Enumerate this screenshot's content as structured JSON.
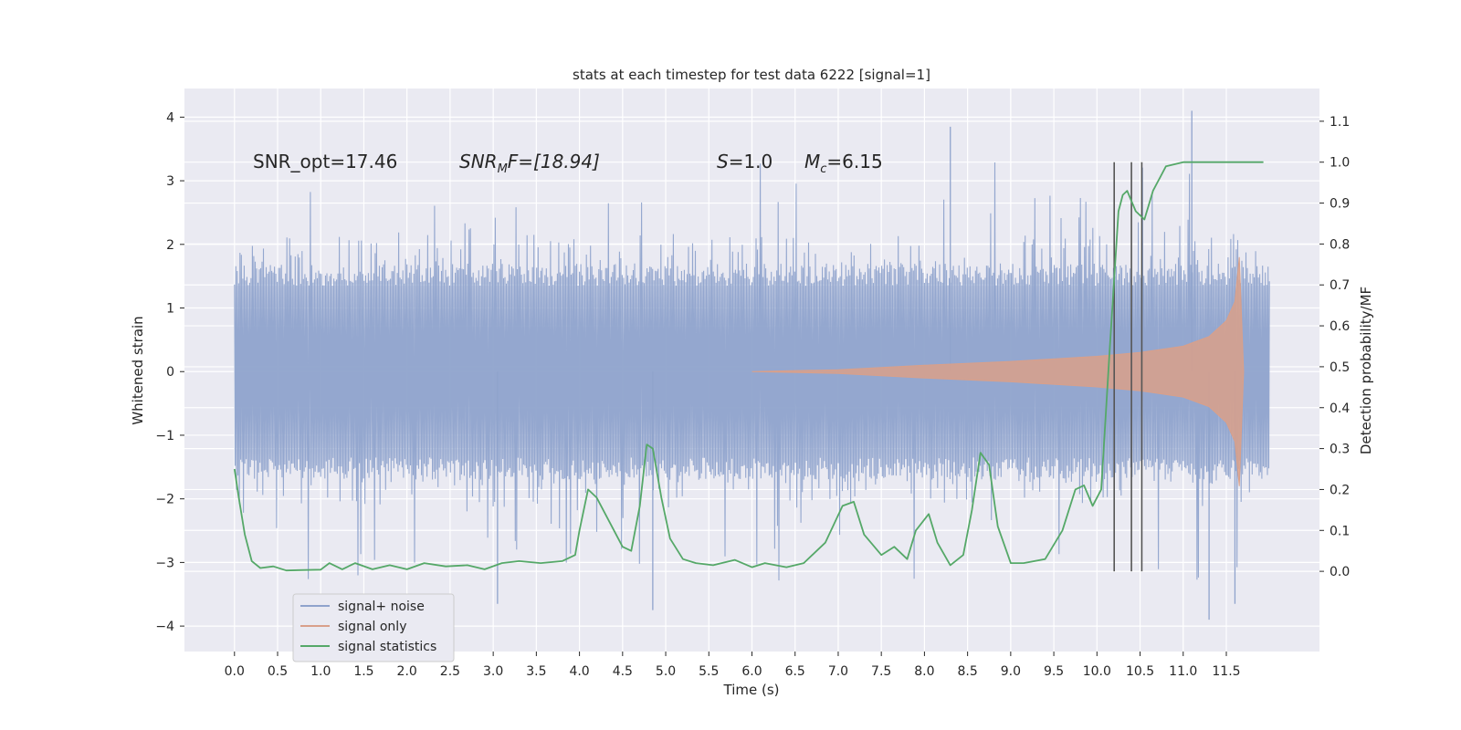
{
  "chart_data": {
    "type": "line",
    "title": "stats at each timestep for test data 6222 [signal=1]",
    "xlabel": "Time (s)",
    "ylabel_left": "Whitened strain",
    "ylabel_right": "Detection probability/MF",
    "xlim": [
      -0.58,
      12.58
    ],
    "ylim_left": [
      -4.4,
      4.45
    ],
    "ylim_right": [
      -0.196,
      1.18
    ],
    "x_ticks": [
      "0.0",
      "0.5",
      "1.0",
      "1.5",
      "2.0",
      "2.5",
      "3.0",
      "3.5",
      "4.0",
      "4.5",
      "5.0",
      "5.5",
      "6.0",
      "6.5",
      "7.0",
      "7.5",
      "8.0",
      "8.5",
      "9.0",
      "9.5",
      "10.0",
      "10.5",
      "11.0",
      "11.5"
    ],
    "y_ticks_left": [
      "4",
      "3",
      "2",
      "1",
      "0",
      "−1",
      "−2",
      "−3",
      "−4"
    ],
    "y_ticks_right": [
      "1.1",
      "1.0",
      "0.9",
      "0.8",
      "0.7",
      "0.6",
      "0.5",
      "0.4",
      "0.3",
      "0.2",
      "0.1",
      "0.0"
    ],
    "grid": true,
    "legend_position": "bottom-left",
    "annotations": {
      "snr_opt": "SNR_opt=17.46",
      "snr_mf_sym": "SNR",
      "snr_mf_sub": "M",
      "snr_mf_rest": "F=[18.94]",
      "s_sym": "S",
      "s_rest": "=1.0",
      "mc_sym": "M",
      "mc_sub": "c",
      "mc_rest": "=6.15"
    },
    "series": [
      {
        "name": "signal+ noise",
        "color": "#8fa3cc",
        "axis": "left",
        "x_range": [
          0.0,
          12.0
        ],
        "approx_envelope": {
          "typical_abs": 1.35,
          "spike_max": 4.1,
          "spike_min": -3.9
        },
        "notable_spikes": [
          {
            "x": 8.3,
            "y": 3.85
          },
          {
            "x": 11.1,
            "y": 4.1
          },
          {
            "x": 11.3,
            "y": -3.9
          },
          {
            "x": 4.85,
            "y": -3.75
          },
          {
            "x": 3.05,
            "y": -3.65
          },
          {
            "x": 11.6,
            "y": -3.65
          }
        ]
      },
      {
        "name": "signal only",
        "color": "#d9a08a",
        "axis": "left",
        "x": [
          6.0,
          7.0,
          8.0,
          9.0,
          10.0,
          10.5,
          11.0,
          11.3,
          11.5,
          11.6,
          11.65,
          11.7
        ],
        "amplitude": [
          0.0,
          0.03,
          0.1,
          0.16,
          0.24,
          0.3,
          0.4,
          0.55,
          0.8,
          1.1,
          1.8,
          0.0
        ]
      },
      {
        "name": "signal statistics",
        "color": "#55a868",
        "axis": "right",
        "x": [
          0.0,
          0.05,
          0.12,
          0.2,
          0.3,
          0.45,
          0.6,
          0.75,
          1.0,
          1.1,
          1.25,
          1.4,
          1.6,
          1.8,
          2.0,
          2.2,
          2.45,
          2.7,
          2.9,
          3.1,
          3.3,
          3.55,
          3.8,
          3.95,
          4.0,
          4.1,
          4.2,
          4.3,
          4.5,
          4.6,
          4.7,
          4.78,
          4.85,
          4.95,
          5.05,
          5.2,
          5.35,
          5.55,
          5.8,
          6.0,
          6.15,
          6.4,
          6.6,
          6.85,
          7.05,
          7.18,
          7.3,
          7.5,
          7.65,
          7.8,
          7.9,
          8.05,
          8.15,
          8.3,
          8.45,
          8.55,
          8.65,
          8.75,
          8.85,
          9.0,
          9.15,
          9.4,
          9.6,
          9.75,
          9.85,
          9.95,
          10.05,
          10.15,
          10.25,
          10.3,
          10.35,
          10.45,
          10.55,
          10.65,
          10.8,
          11.0,
          11.5,
          11.93
        ],
        "y": [
          0.25,
          0.18,
          0.09,
          0.025,
          0.008,
          0.012,
          0.002,
          0.003,
          0.004,
          0.02,
          0.005,
          0.02,
          0.005,
          0.015,
          0.005,
          0.02,
          0.012,
          0.015,
          0.005,
          0.02,
          0.025,
          0.02,
          0.025,
          0.04,
          0.1,
          0.2,
          0.18,
          0.14,
          0.06,
          0.05,
          0.16,
          0.31,
          0.3,
          0.18,
          0.08,
          0.03,
          0.02,
          0.015,
          0.028,
          0.01,
          0.02,
          0.01,
          0.02,
          0.07,
          0.16,
          0.17,
          0.09,
          0.04,
          0.06,
          0.03,
          0.1,
          0.14,
          0.07,
          0.015,
          0.04,
          0.15,
          0.29,
          0.26,
          0.11,
          0.02,
          0.02,
          0.03,
          0.1,
          0.2,
          0.21,
          0.16,
          0.2,
          0.55,
          0.88,
          0.92,
          0.93,
          0.88,
          0.86,
          0.93,
          0.99,
          1.0,
          1.0,
          1.0
        ]
      }
    ],
    "vertical_lines": {
      "color": "#555555",
      "x": [
        10.2,
        10.4,
        10.52
      ],
      "y_range_right": [
        0.0,
        1.0
      ]
    }
  }
}
